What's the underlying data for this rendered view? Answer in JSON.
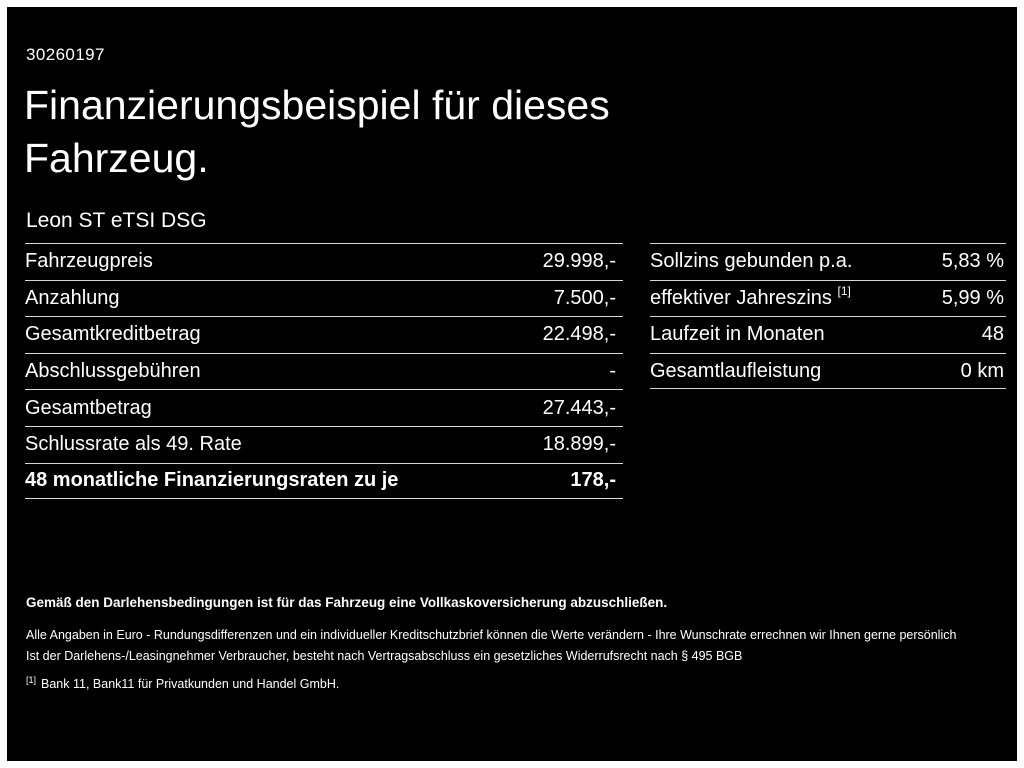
{
  "theme": {
    "background": "#000000",
    "text": "#ffffff",
    "divider": "#d8d8d8"
  },
  "header": {
    "reference_number": "30260197",
    "title_line1": "Finanzierungsbeispiel für dieses",
    "title_line2": "Fahrzeug.",
    "vehicle_model": "Leon ST eTSI DSG"
  },
  "financing_table": {
    "rows": [
      {
        "label": "Fahrzeugpreis",
        "value": "29.998,-"
      },
      {
        "label": "Anzahlung",
        "value": "7.500,-"
      },
      {
        "label": "Gesamtkreditbetrag",
        "value": "22.498,-"
      },
      {
        "label": "Abschlussgebühren",
        "value": "-"
      },
      {
        "label": "Gesamtbetrag",
        "value": "27.443,-"
      },
      {
        "label": "Schlussrate als 49. Rate",
        "value": "18.899,-"
      },
      {
        "label": "48 monatliche Finanzierungsraten zu je",
        "value": "178,-"
      }
    ]
  },
  "terms_table": {
    "rows": [
      {
        "label": "Sollzins gebunden p.a.",
        "value": "5,83 %"
      },
      {
        "label": "effektiver Jahreszins",
        "label_sup": "[1]",
        "value": "5,99 %"
      },
      {
        "label": "Laufzeit in Monaten",
        "value": "48"
      },
      {
        "label": "Gesamtlaufleistung",
        "value": "0 km"
      }
    ]
  },
  "footnotes": {
    "insurance_note": "Gemäß den Darlehensbedingungen ist für das Fahrzeug eine Vollkaskoversicherung abzuschließen.",
    "line1": "Alle Angaben in Euro - Rundungsdifferenzen und ein individueller Kreditschutzbrief können die Werte verändern - Ihre Wunschrate errechnen wir Ihnen gerne persönlich",
    "line2": "Ist der Darlehens-/Leasingnehmer Verbraucher, besteht nach Vertragsabschluss ein gesetzliches Widerrufsrecht nach § 495 BGB",
    "bank_ref_marker": "[1]",
    "bank_ref": "Bank 11, Bank11 für Privatkunden und Handel GmbH."
  }
}
